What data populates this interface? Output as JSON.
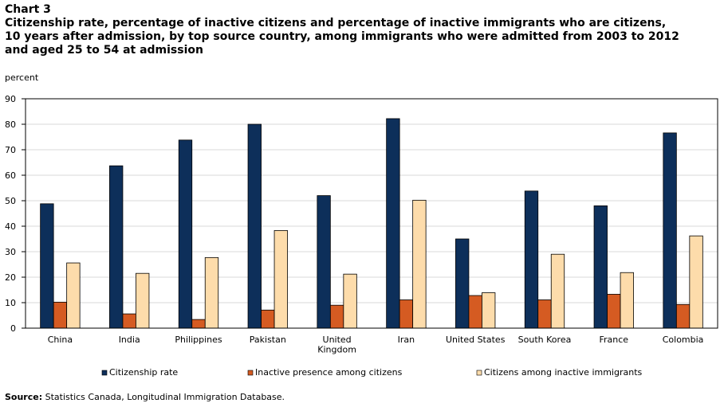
{
  "header": {
    "chart_label": "Chart 3",
    "title": "Citizenship rate, percentage of inactive citizens and percentage of inactive immigrants who are citizens,\n10 years after admission, by top source country, among immigrants who were admitted from 2003 to 2012\nand aged 25 to 54 at admission",
    "unit": "percent"
  },
  "source": {
    "label": "Source:",
    "text": " Statistics Canada, Longitudinal Immigration Database."
  },
  "chart_data": {
    "type": "bar",
    "title": "Citizenship rate, percentage of inactive citizens and percentage of inactive immigrants who are citizens, 10 years after admission, by top source country, among immigrants who were admitted from 2003 to 2012 and aged 25 to 54 at admission",
    "ylabel": "percent",
    "xlabel": "",
    "ylim": [
      0,
      90
    ],
    "yticks": [
      0,
      10,
      20,
      30,
      40,
      50,
      60,
      70,
      80,
      90
    ],
    "grid": true,
    "legend_position": "bottom",
    "categories": [
      [
        "China"
      ],
      [
        "India"
      ],
      [
        "Philippines"
      ],
      [
        "Pakistan"
      ],
      [
        "United",
        "Kingdom"
      ],
      [
        "Iran"
      ],
      [
        "United States"
      ],
      [
        "South Korea"
      ],
      [
        "France"
      ],
      [
        "Colombia"
      ]
    ],
    "series": [
      {
        "name": "Citizenship rate",
        "color": "#0d2f5a",
        "values": [
          48.8,
          63.7,
          73.8,
          80.0,
          52.0,
          82.2,
          35.0,
          53.8,
          48.0,
          76.6
        ]
      },
      {
        "name": "Inactive presence among citizens",
        "color": "#d55b22",
        "values": [
          10.2,
          5.6,
          3.4,
          7.1,
          9.0,
          11.1,
          12.8,
          11.1,
          13.3,
          9.3
        ]
      },
      {
        "name": "Citizens among inactive immigrants",
        "color": "#fddcab",
        "values": [
          25.6,
          21.5,
          27.7,
          38.3,
          21.2,
          50.2,
          13.9,
          29.0,
          21.8,
          36.2
        ]
      }
    ]
  }
}
